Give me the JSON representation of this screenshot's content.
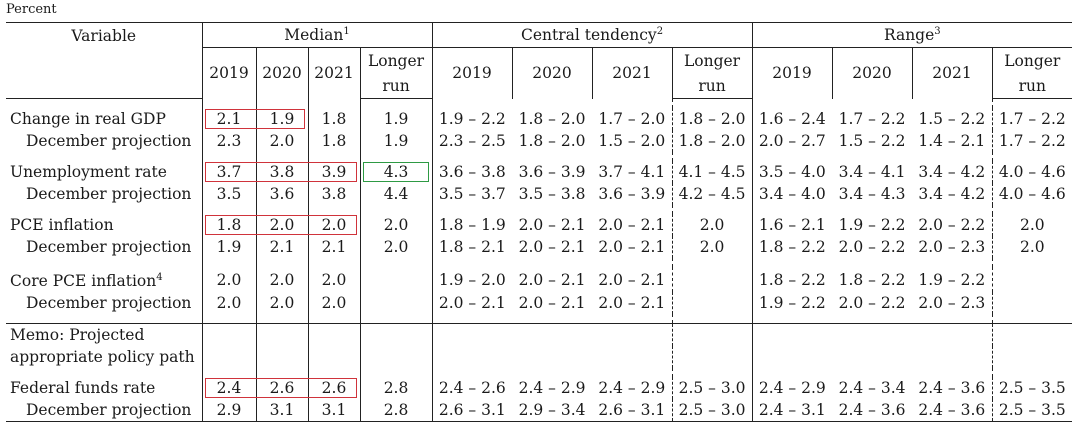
{
  "unit": "Percent",
  "header": {
    "variable": "Variable",
    "median": "Median",
    "median_note": "1",
    "central": "Central tendency",
    "central_note": "2",
    "range": "Range",
    "range_note": "3",
    "years": [
      "2019",
      "2020",
      "2021"
    ],
    "longer1": "Longer",
    "longer2": "run"
  },
  "rows": {
    "gdp": {
      "label": "Change in real GDP",
      "m": [
        "2.1",
        "1.9",
        "1.8",
        "1.9"
      ],
      "ct": [
        "1.9 – 2.2",
        "1.8 – 2.0",
        "1.7 – 2.0",
        "1.8 – 2.0"
      ],
      "r": [
        "1.6 – 2.4",
        "1.7 – 2.2",
        "1.5 – 2.2",
        "1.7 – 2.2"
      ]
    },
    "gdp_dec": {
      "label": "December projection",
      "m": [
        "2.3",
        "2.0",
        "1.8",
        "1.9"
      ],
      "ct": [
        "2.3 – 2.5",
        "1.8 – 2.0",
        "1.5 – 2.0",
        "1.8 – 2.0"
      ],
      "r": [
        "2.0 – 2.7",
        "1.5 – 2.2",
        "1.4 – 2.1",
        "1.7 – 2.2"
      ]
    },
    "unemp": {
      "label": "Unemployment rate",
      "m": [
        "3.7",
        "3.8",
        "3.9",
        "4.3"
      ],
      "ct": [
        "3.6 – 3.8",
        "3.6 – 3.9",
        "3.7 – 4.1",
        "4.1 – 4.5"
      ],
      "r": [
        "3.5 – 4.0",
        "3.4 – 4.1",
        "3.4 – 4.2",
        "4.0 – 4.6"
      ]
    },
    "unemp_dec": {
      "label": "December projection",
      "m": [
        "3.5",
        "3.6",
        "3.8",
        "4.4"
      ],
      "ct": [
        "3.5 – 3.7",
        "3.5 – 3.8",
        "3.6 – 3.9",
        "4.2 – 4.5"
      ],
      "r": [
        "3.4 – 4.0",
        "3.4 – 4.3",
        "3.4 – 4.2",
        "4.0 – 4.6"
      ]
    },
    "pce": {
      "label": "PCE inflation",
      "m": [
        "1.8",
        "2.0",
        "2.0",
        "2.0"
      ],
      "ct": [
        "1.8 – 1.9",
        "2.0 – 2.1",
        "2.0 – 2.1",
        "2.0"
      ],
      "r": [
        "1.6 – 2.1",
        "1.9 – 2.2",
        "2.0 – 2.2",
        "2.0"
      ]
    },
    "pce_dec": {
      "label": "December projection",
      "m": [
        "1.9",
        "2.1",
        "2.1",
        "2.0"
      ],
      "ct": [
        "1.8 – 2.1",
        "2.0 – 2.1",
        "2.0 – 2.1",
        "2.0"
      ],
      "r": [
        "1.8 – 2.2",
        "2.0 – 2.2",
        "2.0 – 2.3",
        "2.0"
      ]
    },
    "core": {
      "label": "Core PCE inflation",
      "note": "4",
      "m": [
        "2.0",
        "2.0",
        "2.0",
        ""
      ],
      "ct": [
        "1.9 – 2.0",
        "2.0 – 2.1",
        "2.0 – 2.1",
        ""
      ],
      "r": [
        "1.8 – 2.2",
        "1.8 – 2.2",
        "1.9 – 2.2",
        ""
      ]
    },
    "core_dec": {
      "label": "December projection",
      "m": [
        "2.0",
        "2.0",
        "2.0",
        ""
      ],
      "ct": [
        "2.0 – 2.1",
        "2.0 – 2.1",
        "2.0 – 2.1",
        ""
      ],
      "r": [
        "1.9 – 2.2",
        "2.0 – 2.2",
        "2.0 – 2.3",
        ""
      ]
    },
    "ffr": {
      "label": "Federal funds rate",
      "m": [
        "2.4",
        "2.6",
        "2.6",
        "2.8"
      ],
      "ct": [
        "2.4 – 2.6",
        "2.4 – 2.9",
        "2.4 – 2.9",
        "2.5 – 3.0"
      ],
      "r": [
        "2.4 – 2.9",
        "2.4 – 3.4",
        "2.4 – 3.6",
        "2.5 – 3.5"
      ]
    },
    "ffr_dec": {
      "label": "December projection",
      "m": [
        "2.9",
        "3.1",
        "3.1",
        "2.8"
      ],
      "ct": [
        "2.6 – 3.1",
        "2.9 – 3.4",
        "2.6 – 3.1",
        "2.5 – 3.0"
      ],
      "r": [
        "2.4 – 3.1",
        "2.4 – 3.6",
        "2.4 – 3.6",
        "2.5 – 3.5"
      ]
    }
  },
  "memo": {
    "line1": "Memo: Projected",
    "line2": "appropriate policy path"
  },
  "highlights": {
    "red": "#d0333b",
    "green": "#2e9a44"
  }
}
